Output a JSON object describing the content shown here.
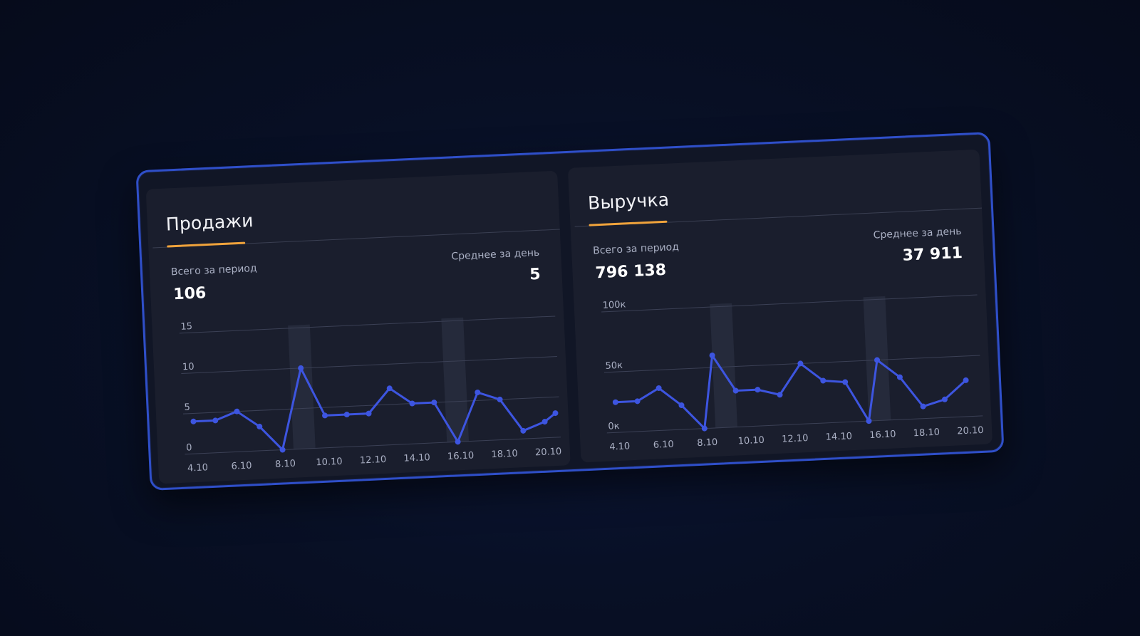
{
  "colors": {
    "line": "#3d55e0",
    "accent": "#f0a33b",
    "frame": "#2f4fc9"
  },
  "panels": [
    {
      "title": "Продажи",
      "total_label": "Всего за период",
      "total_value": "106",
      "avg_label": "Среднее за день",
      "avg_value": "5"
    },
    {
      "title": "Выручка",
      "total_label": "Всего за период",
      "total_value": "796 138",
      "avg_label": "Среднее за день",
      "avg_value": "37 911"
    }
  ],
  "chart_data": [
    {
      "type": "line",
      "title": "Продажи",
      "x_ticks": [
        "4.10",
        "6.10",
        "8.10",
        "10.10",
        "12.10",
        "14.10",
        "16.10",
        "18.10",
        "20.10"
      ],
      "y_ticks": [
        "0",
        "5",
        "10",
        "15"
      ],
      "ylim": [
        0,
        15
      ],
      "x": [
        4,
        5,
        6,
        7,
        8,
        9,
        10,
        11,
        12,
        13,
        14,
        15,
        16,
        17,
        18,
        19,
        20,
        20.5
      ],
      "values": [
        4,
        4,
        5,
        3,
        0,
        10,
        4,
        4,
        4,
        7,
        5,
        5,
        0,
        6,
        5,
        1,
        2,
        3
      ],
      "highlight_bands": [
        [
          8.5,
          9.5
        ],
        [
          15.5,
          16.5
        ]
      ],
      "grid": true
    },
    {
      "type": "line",
      "title": "Выручка",
      "x_ticks": [
        "4.10",
        "6.10",
        "8.10",
        "10.10",
        "12.10",
        "14.10",
        "16.10",
        "18.10",
        "20.10"
      ],
      "y_ticks": [
        "0к",
        "50к",
        "100к"
      ],
      "ylim": [
        0,
        100000
      ],
      "x": [
        4,
        5,
        6,
        7,
        8,
        8.5,
        9.5,
        10.5,
        11.5,
        12.5,
        13.5,
        14.5,
        15.5,
        16,
        17,
        18,
        19,
        20
      ],
      "values": [
        25000,
        25000,
        35000,
        20000,
        0,
        60000,
        30000,
        30000,
        25000,
        50000,
        35000,
        33000,
        0,
        50000,
        35000,
        10000,
        15000,
        30000
      ],
      "highlight_bands": [
        [
          8.5,
          9.5
        ],
        [
          15.5,
          16.5
        ]
      ],
      "grid": true
    }
  ]
}
